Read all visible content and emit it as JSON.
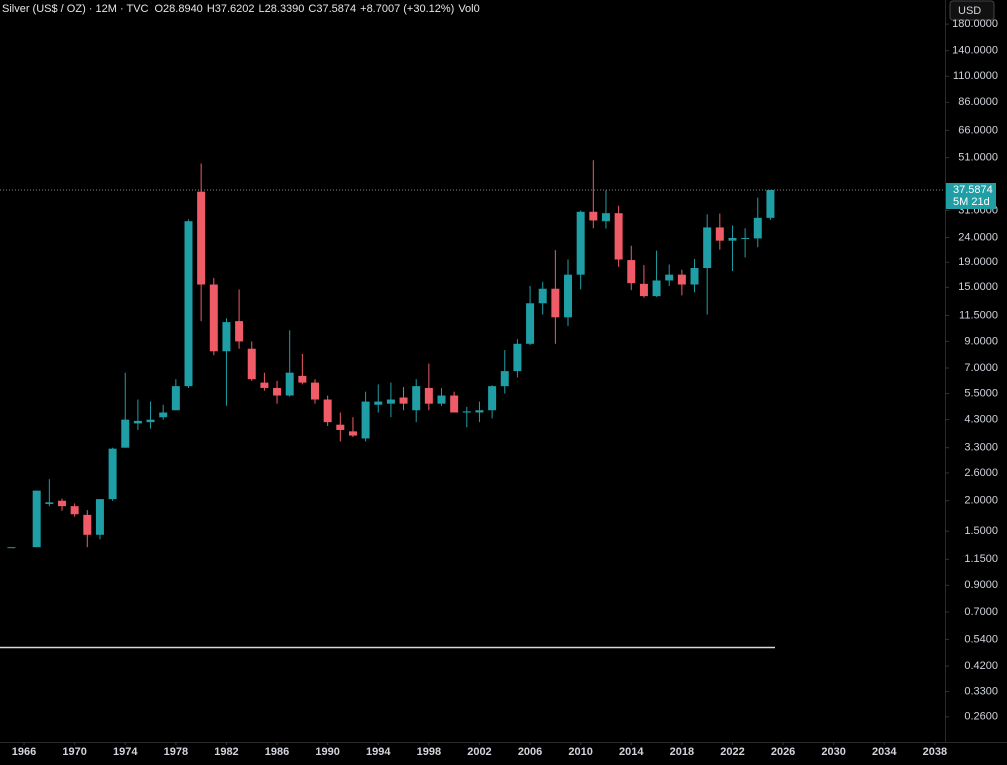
{
  "chart_data": {
    "type": "candlestick",
    "title": "Silver (US$ / OZ) · 12M · TVC",
    "legend_values": [
      "O28.8940",
      "H37.6202",
      "L28.3390",
      "C37.5874",
      "+8.7007 (+30.12%)",
      "Vol0"
    ],
    "currency": "USD",
    "countdown": "5M 21d",
    "log_scale": true,
    "grid": false,
    "up_color": "#1f9ea6",
    "down_color": "#ef5b66",
    "x": [
      1965,
      1967,
      1968,
      1969,
      1970,
      1971,
      1972,
      1973,
      1974,
      1975,
      1976,
      1977,
      1978,
      1979,
      1980,
      1981,
      1982,
      1983,
      1984,
      1985,
      1986,
      1987,
      1988,
      1989,
      1990,
      1991,
      1992,
      1993,
      1994,
      1995,
      1996,
      1997,
      1998,
      1999,
      2000,
      2001,
      2002,
      2003,
      2004,
      2005,
      2006,
      2007,
      2008,
      2009,
      2010,
      2011,
      2012,
      2013,
      2014,
      2015,
      2016,
      2017,
      2018,
      2019,
      2020,
      2021,
      2022,
      2023,
      2024,
      2025
    ],
    "open": [
      1.29,
      1.29,
      1.94,
      2.0,
      1.9,
      1.75,
      1.45,
      2.03,
      3.3,
      4.15,
      4.2,
      4.4,
      4.7,
      5.9,
      37,
      15.4,
      8.2,
      10.9,
      8.4,
      6.1,
      5.8,
      5.4,
      6.5,
      6.1,
      5.2,
      4.1,
      3.85,
      3.6,
      4.95,
      5.0,
      5.3,
      4.7,
      5.8,
      5.0,
      5.4,
      4.6,
      4.6,
      4.7,
      5.9,
      6.8,
      8.8,
      12.9,
      14.8,
      11.3,
      16.9,
      30.6,
      28.0,
      30.2,
      19.4,
      15.5,
      13.8,
      16.0,
      16.9,
      15.4,
      18.0,
      26.4,
      23.3,
      23.8,
      23.8,
      28.894
    ],
    "high": [
      1.29,
      2.2,
      2.45,
      2.04,
      1.95,
      1.83,
      2.03,
      3.3,
      6.7,
      5.2,
      5.1,
      4.95,
      6.3,
      28.5,
      48.3,
      16.4,
      11.2,
      14.7,
      9.0,
      6.7,
      6.2,
      10.0,
      8.0,
      6.3,
      5.4,
      4.6,
      4.4,
      5.6,
      6.0,
      6.1,
      5.85,
      6.3,
      7.3,
      5.8,
      5.6,
      4.85,
      5.1,
      5.95,
      8.3,
      9.2,
      15.2,
      15.8,
      21.3,
      19.5,
      31.0,
      49.8,
      37.5,
      32.4,
      22.2,
      18.5,
      21.2,
      18.6,
      17.7,
      19.6,
      29.9,
      30.1,
      26.9,
      26.2,
      35.0,
      37.6202
    ],
    "low": [
      1.29,
      1.29,
      1.9,
      1.82,
      1.72,
      1.29,
      1.39,
      2.0,
      3.3,
      3.9,
      3.95,
      4.3,
      4.7,
      5.8,
      10.9,
      7.9,
      4.9,
      8.4,
      6.2,
      5.65,
      5.0,
      5.35,
      6.0,
      5.0,
      4.05,
      3.5,
      3.65,
      3.5,
      4.6,
      4.4,
      4.7,
      4.2,
      4.7,
      4.9,
      4.6,
      4.0,
      4.2,
      4.35,
      5.5,
      6.4,
      8.7,
      11.6,
      8.8,
      10.4,
      14.7,
      26.2,
      26.1,
      18.2,
      14.6,
      13.6,
      13.7,
      15.2,
      13.9,
      14.3,
      11.6,
      21.4,
      17.5,
      19.9,
      21.9,
      28.339
    ],
    "close": [
      1.29,
      2.2,
      1.97,
      1.9,
      1.76,
      1.45,
      2.03,
      3.27,
      4.3,
      4.25,
      4.3,
      4.6,
      5.9,
      28.0,
      15.4,
      8.2,
      10.8,
      9.0,
      6.3,
      5.8,
      5.4,
      6.7,
      6.1,
      5.2,
      4.2,
      3.9,
      3.7,
      5.1,
      5.1,
      5.2,
      5.0,
      5.9,
      5.0,
      5.4,
      4.6,
      4.65,
      4.7,
      5.9,
      6.8,
      8.8,
      12.9,
      14.8,
      11.3,
      16.9,
      30.6,
      28.2,
      30.2,
      19.5,
      15.6,
      13.8,
      16.0,
      16.9,
      15.4,
      18.0,
      26.4,
      23.3,
      23.9,
      23.9,
      28.9,
      37.5874
    ],
    "xlim": [
      1964.1,
      2038.8
    ],
    "xticks": [
      1966,
      1970,
      1974,
      1978,
      1982,
      1986,
      1990,
      1994,
      1998,
      2002,
      2006,
      2010,
      2014,
      2018,
      2022,
      2026,
      2030,
      2034,
      2038
    ],
    "ylim": [
      0.205,
      226
    ],
    "yticks": [
      {
        "value": 180,
        "label": "180.0000"
      },
      {
        "value": 140,
        "label": "140.0000"
      },
      {
        "value": 110,
        "label": "110.0000"
      },
      {
        "value": 86,
        "label": "86.0000"
      },
      {
        "value": 66,
        "label": "66.0000"
      },
      {
        "value": 51,
        "label": "51.0000"
      },
      {
        "value": 31,
        "label": "31.0000"
      },
      {
        "value": 24,
        "label": "24.0000"
      },
      {
        "value": 19,
        "label": "19.0000"
      },
      {
        "value": 15,
        "label": "15.0000"
      },
      {
        "value": 11.5,
        "label": "11.5000"
      },
      {
        "value": 9,
        "label": "9.0000"
      },
      {
        "value": 7,
        "label": "7.0000"
      },
      {
        "value": 5.5,
        "label": "5.5000"
      },
      {
        "value": 4.3,
        "label": "4.3000"
      },
      {
        "value": 3.3,
        "label": "3.3000"
      },
      {
        "value": 2.6,
        "label": "2.6000"
      },
      {
        "value": 2,
        "label": "2.0000"
      },
      {
        "value": 1.5,
        "label": "1.5000"
      },
      {
        "value": 1.15,
        "label": "1.1500"
      },
      {
        "value": 0.9,
        "label": "0.9000"
      },
      {
        "value": 0.7,
        "label": "0.7000"
      },
      {
        "value": 0.54,
        "label": "0.5400"
      },
      {
        "value": 0.42,
        "label": "0.4200"
      },
      {
        "value": 0.33,
        "label": "0.3300"
      },
      {
        "value": 0.26,
        "label": "0.2600"
      }
    ]
  }
}
